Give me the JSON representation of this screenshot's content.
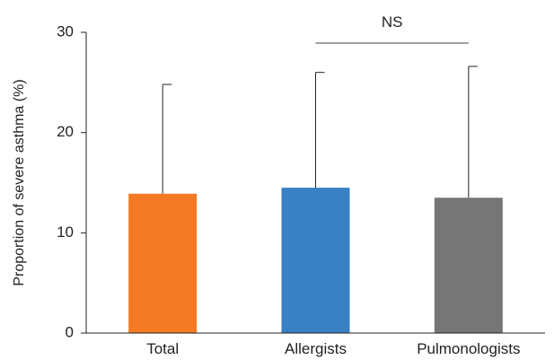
{
  "chart_data": {
    "type": "bar",
    "categories": [
      "Total",
      "Allergists",
      "Pulmonologists"
    ],
    "values": [
      13.9,
      14.5,
      13.5
    ],
    "error_upper": [
      24.8,
      26.0,
      26.6
    ],
    "colors": [
      "#f37a22",
      "#3a80c4",
      "#767676"
    ],
    "title": "",
    "xlabel": "",
    "ylabel": "Proportion of severe asthma (%)",
    "ylim": [
      0,
      30
    ],
    "yticks": [
      0,
      10,
      20,
      30
    ],
    "grid": false,
    "annotations": [
      {
        "text": "NS",
        "from_category": "Allergists",
        "to_category": "Pulmonologists"
      }
    ]
  }
}
